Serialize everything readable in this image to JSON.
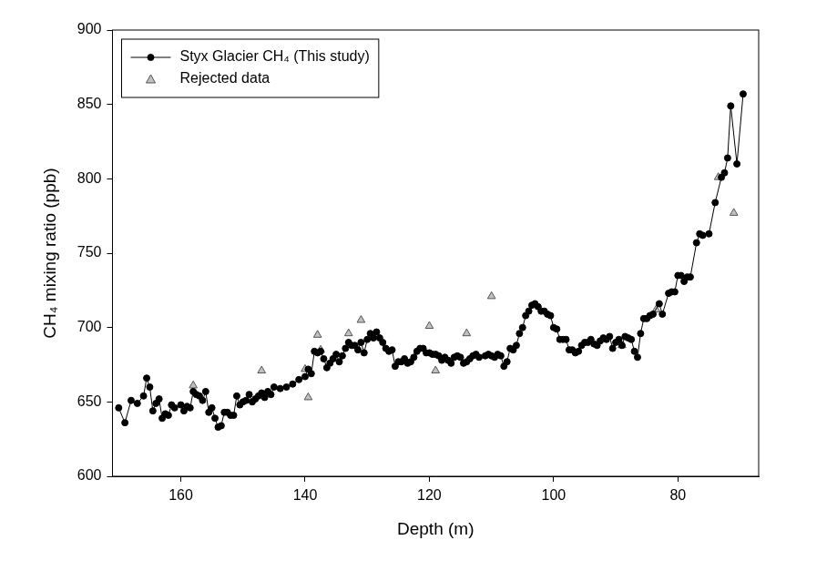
{
  "chart_data": {
    "type": "scatter",
    "x_label": "Depth (m)",
    "y_label": "CH₄ mixing ratio (ppb)",
    "xlim": [
      171,
      67
    ],
    "xticks": [
      160,
      140,
      120,
      100,
      80
    ],
    "ylim": [
      600,
      900
    ],
    "yticks": [
      600,
      650,
      700,
      750,
      800,
      850,
      900
    ],
    "grid": false,
    "legend": "upper left",
    "series": [
      {
        "name": "Styx Glacier CH₄ (This study)",
        "color": "#000000",
        "marker": "circle",
        "line_style": "solid",
        "x": [
          170,
          169,
          168,
          167,
          166,
          165.5,
          165,
          164.5,
          164,
          163.5,
          163,
          162.5,
          162,
          161.5,
          161,
          160,
          159.5,
          159,
          158.5,
          158,
          157.5,
          157,
          156.5,
          156,
          155.5,
          155,
          154.5,
          154,
          153.5,
          153,
          152.5,
          152,
          151.5,
          151,
          150.5,
          150,
          149.5,
          149,
          148.5,
          148,
          147.5,
          147,
          146.5,
          146,
          145.5,
          145,
          144,
          143,
          142,
          141,
          140,
          139.5,
          139,
          138.5,
          138,
          137.5,
          137,
          136.5,
          136,
          135.5,
          135,
          134.5,
          134,
          133.5,
          133,
          132.5,
          132,
          131.5,
          131,
          130.5,
          130,
          129.5,
          129,
          128.5,
          128,
          127.5,
          127,
          126.5,
          126,
          125.5,
          125,
          124.5,
          124,
          123.5,
          123,
          122.5,
          122,
          121.5,
          121,
          120.5,
          120,
          119.5,
          119,
          118.5,
          118,
          117.5,
          117,
          116.5,
          116,
          115.5,
          115,
          114.5,
          114,
          113.5,
          113,
          112.5,
          112,
          111,
          110.5,
          110,
          109.5,
          109,
          108.5,
          108,
          107.5,
          107,
          106.5,
          106,
          105.5,
          105,
          104.5,
          104,
          103.5,
          103,
          102.5,
          102,
          101.5,
          101,
          100.5,
          100,
          99.5,
          99,
          98.5,
          98,
          97.5,
          97,
          96.5,
          96,
          95.5,
          95,
          94.5,
          94,
          93.5,
          93,
          92.5,
          92,
          91.5,
          91,
          90.5,
          90,
          89.5,
          89,
          88.5,
          88,
          87.5,
          87,
          86.5,
          86,
          85.5,
          85,
          84.5,
          84,
          83,
          82.5,
          81.5,
          81,
          80.5,
          80,
          79.5,
          79,
          78.5,
          78,
          77,
          76.5,
          76,
          75,
          74,
          73,
          72.5,
          72,
          71.5,
          70.5,
          69.5
        ],
        "values": [
          646,
          636,
          651,
          649,
          654,
          666,
          660,
          644,
          649,
          652,
          639,
          642,
          641,
          648,
          646,
          648,
          644,
          647,
          646,
          657,
          655,
          654,
          651,
          657,
          643,
          646,
          639,
          633,
          634,
          643,
          643,
          641,
          641,
          654,
          648,
          650,
          651,
          655,
          650,
          652,
          654,
          656,
          653,
          657,
          655,
          660,
          659,
          660,
          662,
          665,
          667,
          672,
          669,
          684,
          683,
          684,
          679,
          673,
          676,
          679,
          682,
          677,
          681,
          686,
          690,
          688,
          688,
          685,
          690,
          683,
          692,
          696,
          693,
          697,
          693,
          690,
          686,
          684,
          685,
          674,
          677,
          677,
          679,
          676,
          677,
          680,
          684,
          686,
          686,
          683,
          683,
          682,
          682,
          681,
          678,
          680,
          678,
          676,
          680,
          681,
          680,
          676,
          677,
          679,
          681,
          682,
          680,
          681,
          682,
          681,
          680,
          682,
          681,
          674,
          677,
          686,
          685,
          688,
          696,
          700,
          708,
          711,
          715,
          716,
          714,
          711,
          711,
          709,
          708,
          700,
          699,
          692,
          692,
          692,
          685,
          685,
          683,
          684,
          688,
          690,
          690,
          692,
          689,
          688,
          691,
          693,
          692,
          694,
          686,
          690,
          692,
          688,
          694,
          693,
          692,
          684,
          680,
          696,
          706,
          706,
          708,
          709,
          716,
          709,
          723,
          724,
          724,
          735,
          735,
          731,
          734,
          734,
          757,
          763,
          762,
          763,
          784,
          801,
          804,
          814,
          849,
          810,
          857
        ]
      },
      {
        "name": "Rejected data",
        "color": "#c0c0c0",
        "marker": "triangle",
        "line_style": "none",
        "x": [
          158,
          147,
          140,
          139.5,
          138,
          137.5,
          133,
          131,
          120,
          119,
          114,
          110,
          89,
          83.5,
          73.5,
          71
        ],
        "values": [
          661,
          671,
          672,
          653,
          695,
          685,
          696,
          705,
          701,
          671,
          696,
          721,
          688,
          712,
          801,
          777
        ]
      }
    ]
  }
}
